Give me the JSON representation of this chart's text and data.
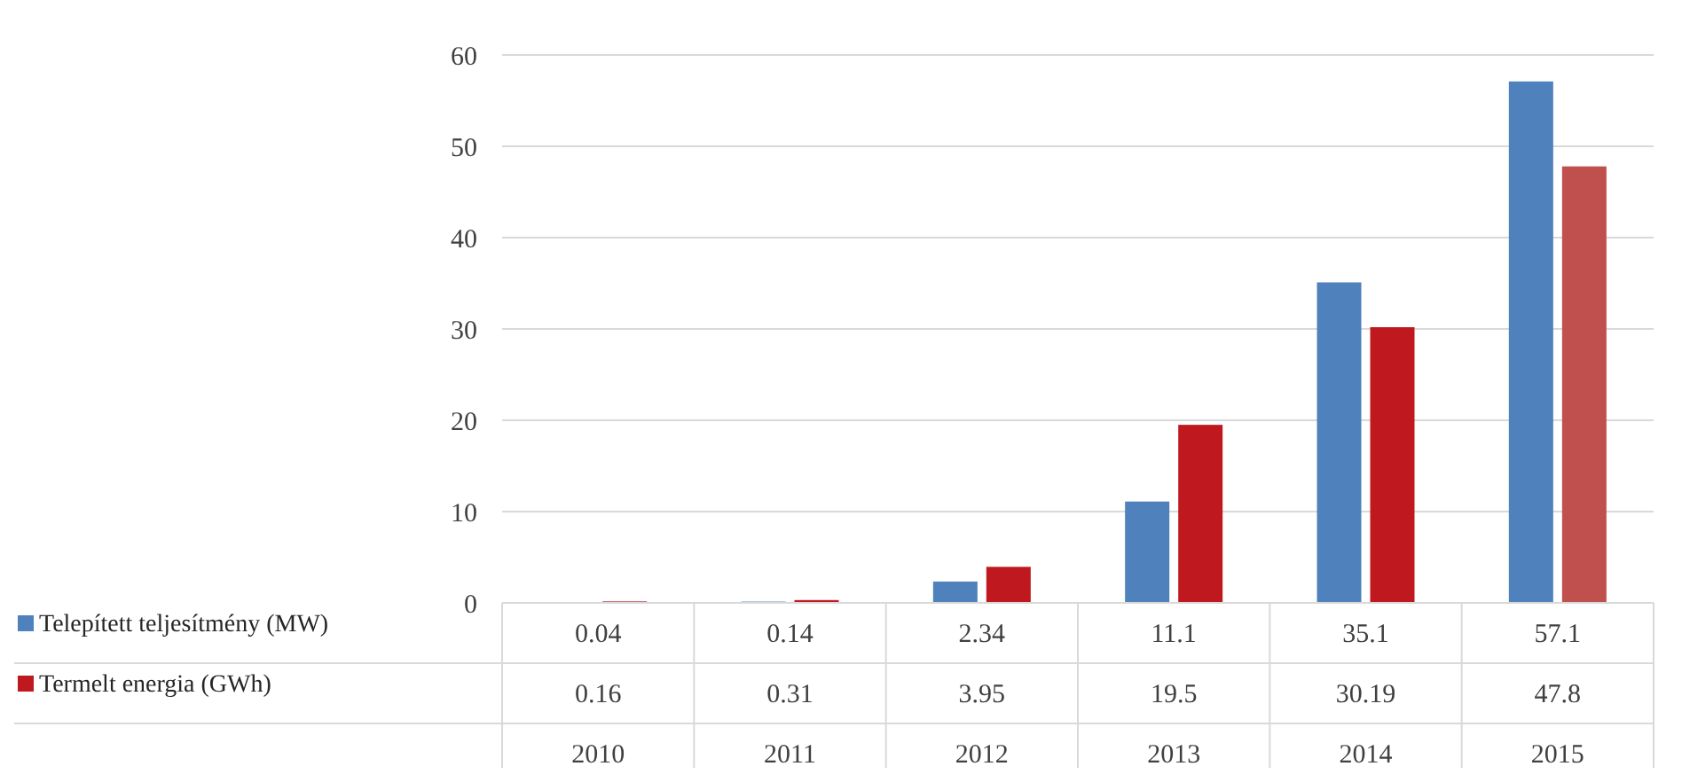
{
  "chart_data": {
    "type": "bar",
    "categories": [
      "2010",
      "2011",
      "2012",
      "2013",
      "2014",
      "2015"
    ],
    "series": [
      {
        "name": "Telepített teljesítmény (MW)",
        "color": "#4f81bd",
        "values": [
          0.04,
          0.14,
          2.34,
          11.1,
          35.1,
          57.1
        ]
      },
      {
        "name": "Termelt energia (GWh)",
        "color": "#c0181f",
        "colors": [
          "#c0181f",
          "#c0181f",
          "#c0181f",
          "#c0181f",
          "#c0181f",
          "#c0504d"
        ],
        "values": [
          0.16,
          0.31,
          3.95,
          19.5,
          30.19,
          47.8
        ]
      }
    ],
    "ylim": [
      0,
      60
    ],
    "yticks": [
      0,
      10,
      20,
      30,
      40,
      50,
      60
    ],
    "grid": "y",
    "data_labels": true,
    "legend": "bottom left"
  }
}
